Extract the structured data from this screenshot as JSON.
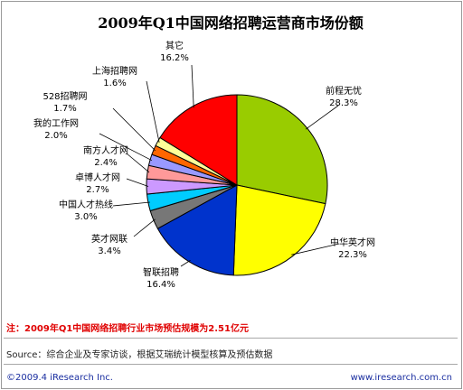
{
  "title": "2009年Q1中国网络招聘运营商市场份额",
  "note": "注：2009年Q1中国网络招聘行业市场预估规模为2.51亿元",
  "source": "Source：综合企业及专家访谈，根据艾瑞统计模型核算及预估数据",
  "footer_left": "©2009.4 iResearch Inc.",
  "footer_right": "www.iresearch.com.cn",
  "chart_data": {
    "type": "pie",
    "start_angle_deg": 0,
    "direction": "clockwise",
    "slices": [
      {
        "label": "前程无忧",
        "value": 28.3,
        "value_text": "28.3%",
        "color": "#99cc00"
      },
      {
        "label": "中华英才网",
        "value": 22.3,
        "value_text": "22.3%",
        "color": "#ffff00"
      },
      {
        "label": "智联招聘",
        "value": 16.4,
        "value_text": "16.4%",
        "color": "#0033cc"
      },
      {
        "label": "英才网联",
        "value": 3.4,
        "value_text": "3.4%",
        "color": "#777777"
      },
      {
        "label": "中国人才热线",
        "value": 3.0,
        "value_text": "3.0%",
        "color": "#00ccff"
      },
      {
        "label": "卓博人才网",
        "value": 2.7,
        "value_text": "2.7%",
        "color": "#cc99ff"
      },
      {
        "label": "南方人才网",
        "value": 2.4,
        "value_text": "2.4%",
        "color": "#ff9999"
      },
      {
        "label": "我的工作网",
        "value": 2.0,
        "value_text": "2.0%",
        "color": "#9999ff"
      },
      {
        "label": "528招聘网",
        "value": 1.7,
        "value_text": "1.7%",
        "color": "#ff6600"
      },
      {
        "label": "上海招聘网",
        "value": 1.6,
        "value_text": "1.6%",
        "color": "#ffff99"
      },
      {
        "label": "其它",
        "value": 16.2,
        "value_text": "16.2%",
        "color": "#ff0000"
      }
    ]
  }
}
